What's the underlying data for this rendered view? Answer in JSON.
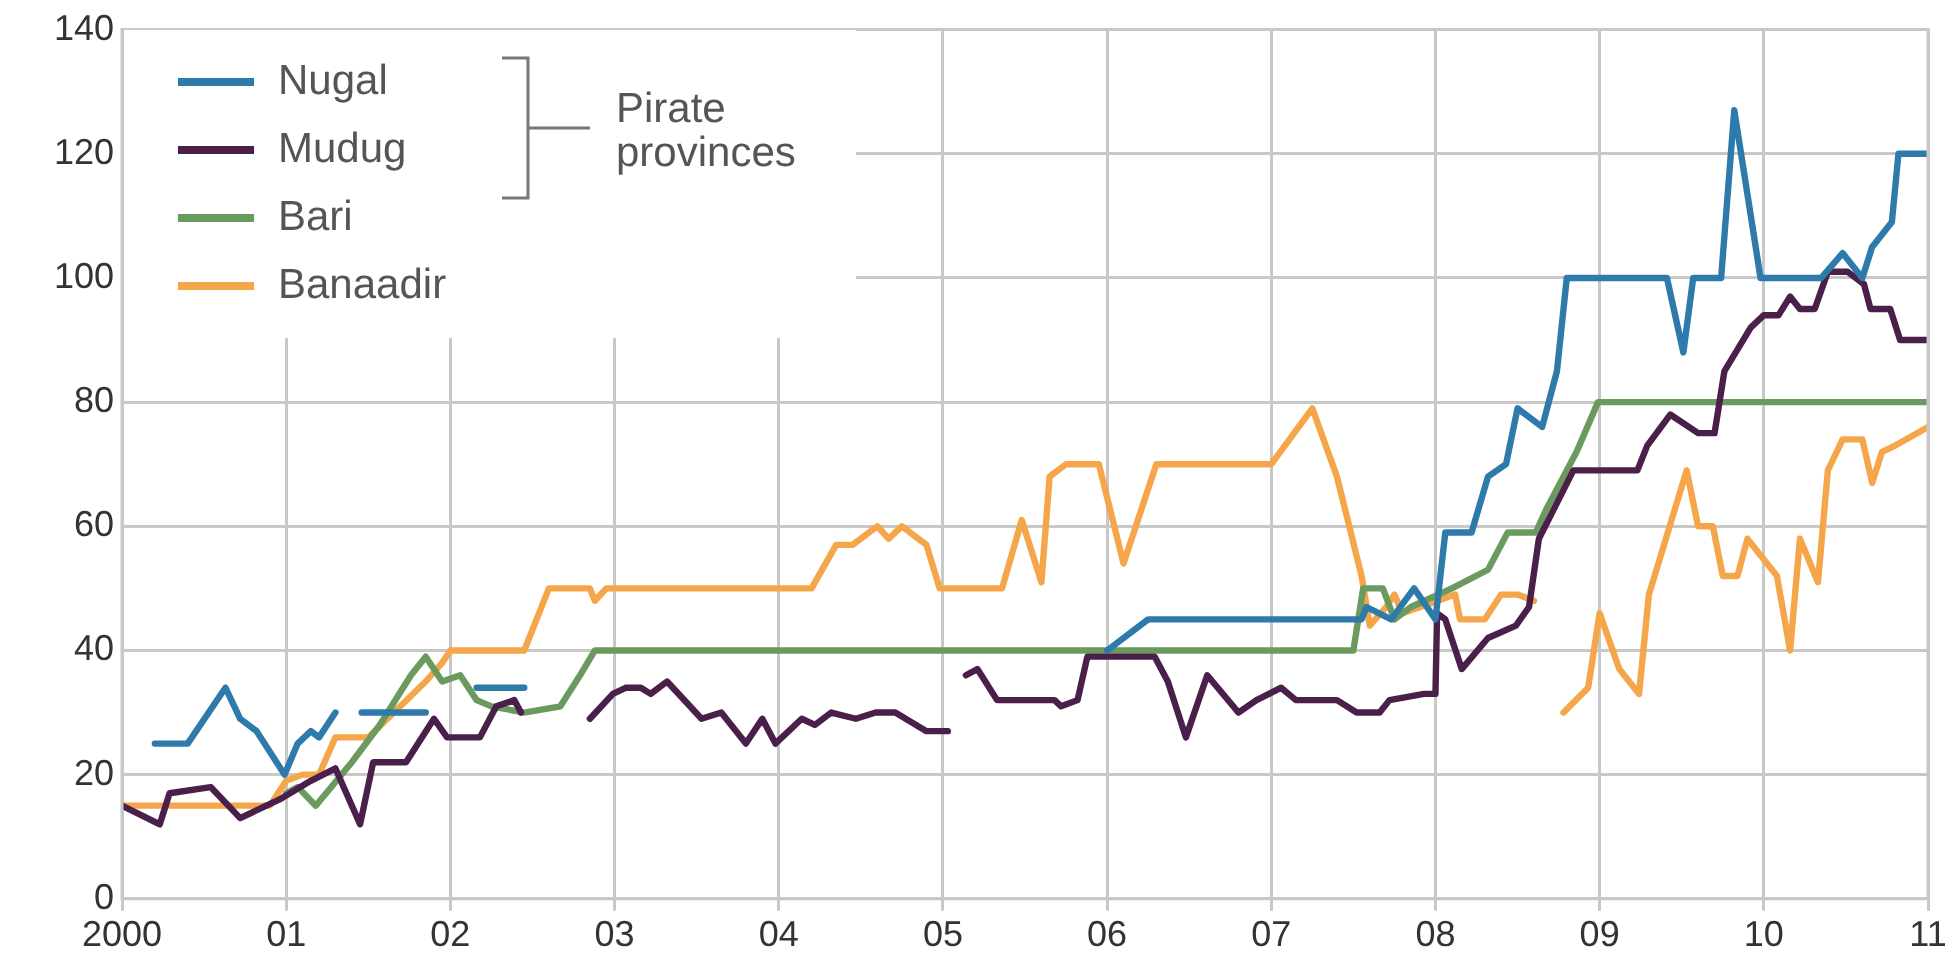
{
  "chart_data": {
    "type": "line",
    "xlim": [
      2000,
      2011
    ],
    "xticks": [
      {
        "value": 2000,
        "label": "2000"
      },
      {
        "value": 2001,
        "label": "01"
      },
      {
        "value": 2002,
        "label": "02"
      },
      {
        "value": 2003,
        "label": "03"
      },
      {
        "value": 2004,
        "label": "04"
      },
      {
        "value": 2005,
        "label": "05"
      },
      {
        "value": 2006,
        "label": "06"
      },
      {
        "value": 2007,
        "label": "07"
      },
      {
        "value": 2008,
        "label": "08"
      },
      {
        "value": 2009,
        "label": "09"
      },
      {
        "value": 2010,
        "label": "10"
      },
      {
        "value": 2011,
        "label": "11"
      }
    ],
    "ylim": [
      0,
      140
    ],
    "yticks": [
      0,
      20,
      40,
      60,
      80,
      100,
      120,
      140
    ],
    "grid": true,
    "legend": "top left",
    "annotations": [
      "Pirate provinces"
    ],
    "series": [
      {
        "name": "Nugal",
        "color": "#2e7bab",
        "x": [
          2000.2,
          2000.4,
          2000.63,
          2000.72,
          2000.82,
          2000.99,
          2001.07,
          2001.15,
          2001.2,
          2001.3,
          2001.38,
          2001.46,
          2001.85,
          2002.0,
          2002.16,
          2002.45,
          2003.0,
          2006.0,
          2006.25,
          2007.55,
          2007.58,
          2007.73,
          2007.87,
          2008.0,
          2008.06,
          2008.22,
          2008.32,
          2008.43,
          2008.5,
          2008.65,
          2008.74,
          2008.8,
          2009.41,
          2009.51,
          2009.57,
          2009.74,
          2009.82,
          2009.98,
          2010.35,
          2010.48,
          2010.6,
          2010.66,
          2010.78,
          2010.82,
          2011.0
        ],
        "values": [
          25,
          25,
          34,
          29,
          27,
          20,
          25,
          27,
          26,
          30,
          null,
          30,
          30,
          null,
          34,
          34,
          null,
          40,
          45,
          45,
          47,
          45,
          50,
          45,
          59,
          59,
          68,
          70,
          79,
          76,
          85,
          100,
          100,
          88,
          100,
          100,
          127,
          100,
          100,
          104,
          100,
          105,
          109,
          120,
          120
        ]
      },
      {
        "name": "Mudug",
        "color": "#4a1f4a",
        "x": [
          2000.0,
          2000.23,
          2000.29,
          2000.54,
          2000.72,
          2000.96,
          2001.15,
          2001.3,
          2001.45,
          2001.53,
          2001.73,
          2001.9,
          2001.98,
          2002.1,
          2002.18,
          2002.28,
          2002.39,
          2002.43,
          2002.6,
          2002.85,
          2002.99,
          2003.07,
          2003.16,
          2003.22,
          2003.32,
          2003.53,
          2003.65,
          2003.8,
          2003.9,
          2003.98,
          2004.14,
          2004.22,
          2004.32,
          2004.47,
          2004.59,
          2004.71,
          2004.9,
          2005.03,
          2005.08,
          2005.14,
          2005.21,
          2005.33,
          2005.68,
          2005.72,
          2005.82,
          2005.88,
          2006.29,
          2006.37,
          2006.48,
          2006.61,
          2006.8,
          2006.91,
          2007.06,
          2007.15,
          2007.4,
          2007.52,
          2007.66,
          2007.72,
          2007.93,
          2008.0,
          2008.01,
          2008.06,
          2008.16,
          2008.32,
          2008.49,
          2008.57,
          2008.63,
          2008.84,
          2009.23,
          2009.29,
          2009.43,
          2009.6,
          2009.7,
          2009.76,
          2009.92,
          2010.0,
          2010.09,
          2010.16,
          2010.22,
          2010.31,
          2010.39,
          2010.51,
          2010.61,
          2010.65,
          2010.77,
          2010.83,
          2011.0
        ],
        "values": [
          15,
          12,
          17,
          18,
          13,
          16,
          19,
          21,
          12,
          22,
          22,
          29,
          26,
          26,
          26,
          31,
          32,
          30,
          null,
          29,
          33,
          34,
          34,
          33,
          35,
          29,
          30,
          25,
          29,
          25,
          29,
          28,
          30,
          29,
          30,
          30,
          27,
          27,
          null,
          36,
          37,
          32,
          32,
          31,
          32,
          39,
          39,
          35,
          26,
          36,
          30,
          32,
          34,
          32,
          32,
          30,
          30,
          32,
          33,
          33,
          46,
          45,
          37,
          42,
          44,
          47,
          58,
          69,
          69,
          73,
          78,
          75,
          75,
          85,
          92,
          94,
          94,
          97,
          95,
          95,
          101,
          101,
          99,
          95,
          95,
          90,
          90
        ]
      },
      {
        "name": "Bari",
        "color": "#6b9a5e",
        "x": [
          2001.0,
          2001.07,
          2001.18,
          2001.4,
          2001.57,
          2001.76,
          2001.85,
          2001.95,
          2002.06,
          2002.16,
          2002.25,
          2002.45,
          2002.67,
          2002.79,
          2002.88,
          2007.5,
          2007.56,
          2007.68,
          2007.75,
          2007.85,
          2008.1,
          2008.32,
          2008.44,
          2008.61,
          2008.68,
          2008.86,
          2008.99,
          2011.0
        ],
        "values": [
          17,
          18,
          15,
          22,
          28,
          36,
          39,
          35,
          36,
          32,
          31,
          30,
          31,
          36,
          40,
          40,
          50,
          50,
          45,
          47,
          50,
          53,
          59,
          59,
          63,
          72,
          80,
          80
        ]
      },
      {
        "name": "Banaadir",
        "color": "#f5a64a",
        "x": [
          2000.0,
          2000.9,
          2001.0,
          2001.1,
          2001.2,
          2001.3,
          2001.5,
          2001.85,
          2001.95,
          2002.0,
          2002.45,
          2002.6,
          2002.85,
          2002.88,
          2002.95,
          2004.2,
          2004.35,
          2004.45,
          2004.6,
          2004.67,
          2004.75,
          2004.9,
          2004.98,
          2005.36,
          2005.48,
          2005.6,
          2005.65,
          2005.75,
          2005.95,
          2006.1,
          2006.3,
          2007.0,
          2007.25,
          2007.4,
          2007.55,
          2007.6,
          2007.7,
          2007.75,
          2007.8,
          2008.12,
          2008.15,
          2008.3,
          2008.4,
          2008.5,
          2008.6,
          2008.7,
          2008.78,
          2008.93,
          2009.0,
          2009.12,
          2009.24,
          2009.3,
          2009.53,
          2009.6,
          2009.69,
          2009.75,
          2009.84,
          2009.9,
          2010.08,
          2010.16,
          2010.22,
          2010.33,
          2010.39,
          2010.48,
          2010.6,
          2010.66,
          2010.72,
          2010.8,
          2011.0
        ],
        "values": [
          15,
          15,
          19,
          20,
          20,
          26,
          26,
          35,
          38,
          40,
          40,
          50,
          50,
          48,
          50,
          50,
          57,
          57,
          60,
          58,
          60,
          57,
          50,
          50,
          61,
          51,
          68,
          70,
          70,
          54,
          70,
          70,
          79,
          68,
          52,
          44,
          47,
          49,
          46,
          49,
          45,
          45,
          49,
          49,
          48,
          null,
          30,
          34,
          46,
          37,
          33,
          49,
          69,
          60,
          60,
          52,
          52,
          58,
          52,
          40,
          58,
          51,
          69,
          74,
          74,
          67,
          72,
          73,
          76
        ]
      }
    ]
  }
}
